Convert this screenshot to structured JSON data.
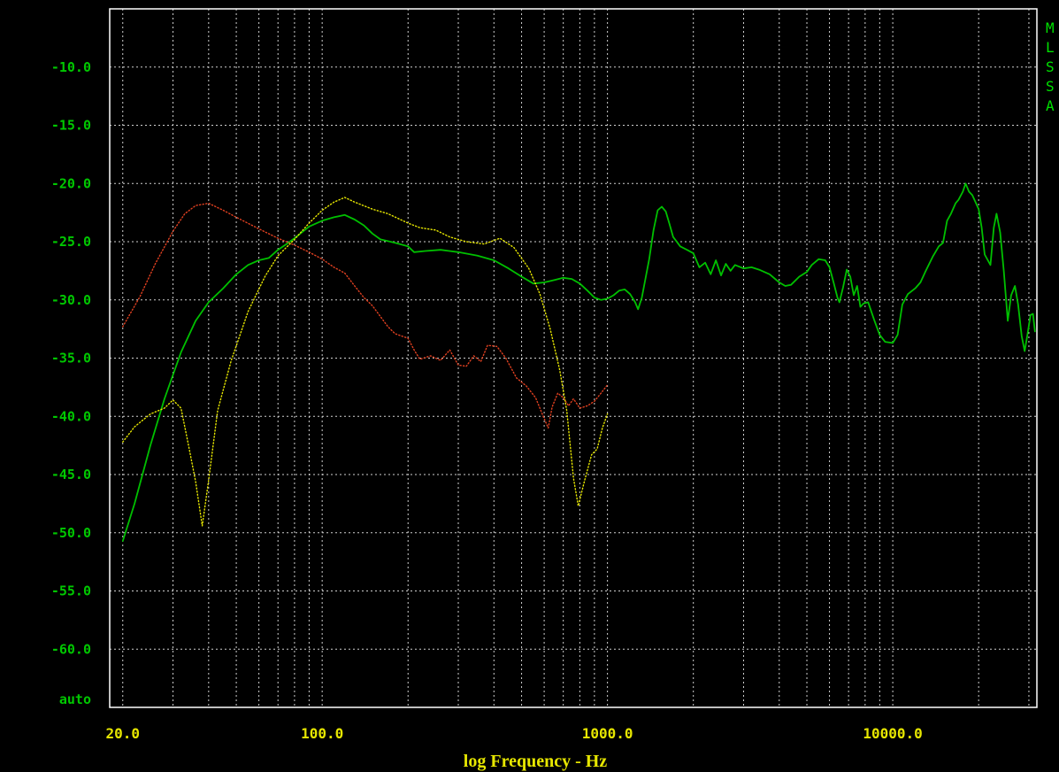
{
  "chart_data": {
    "type": "line",
    "xlabel": "log Frequency - Hz",
    "xscale": "log",
    "xlim": [
      18,
      32000
    ],
    "ylim": [
      -65.0,
      -5.0
    ],
    "auto_label": "auto",
    "grid": true,
    "x_tick_labels": [
      "20.0",
      "100.0",
      "1000.0",
      "10000.0"
    ],
    "y_ticks": [
      {
        "value": -10,
        "label": "-10.0"
      },
      {
        "value": -15,
        "label": "-15.0"
      },
      {
        "value": -20,
        "label": "-20.0"
      },
      {
        "value": -25,
        "label": "-25.0"
      },
      {
        "value": -30,
        "label": "-30.0"
      },
      {
        "value": -35,
        "label": "-35.0"
      },
      {
        "value": -40,
        "label": "-40.0"
      },
      {
        "value": -45,
        "label": "-45.0"
      },
      {
        "value": -50,
        "label": "-50.0"
      },
      {
        "value": -55,
        "label": "-55.0"
      },
      {
        "value": -60,
        "label": "-60.0"
      }
    ],
    "side_letters": [
      "M",
      "L",
      "S",
      "S",
      "A"
    ],
    "colors": {
      "axis_labels": "#00c800",
      "x_labels": "#e6e600",
      "grid": "#d0d0d0",
      "frame": "#ffffff",
      "background": "#000000"
    },
    "series": [
      {
        "color": "#00c000",
        "style": "solid",
        "points": [
          [
            20,
            -50.7
          ],
          [
            22,
            -47.5
          ],
          [
            25,
            -42.5
          ],
          [
            28,
            -38.5
          ],
          [
            32,
            -34.5
          ],
          [
            36,
            -31.8
          ],
          [
            40,
            -30.2
          ],
          [
            45,
            -29.0
          ],
          [
            50,
            -27.8
          ],
          [
            55,
            -27.0
          ],
          [
            60,
            -26.6
          ],
          [
            65,
            -26.4
          ],
          [
            70,
            -25.7
          ],
          [
            75,
            -25.2
          ],
          [
            80,
            -24.7
          ],
          [
            90,
            -23.7
          ],
          [
            100,
            -23.2
          ],
          [
            110,
            -22.9
          ],
          [
            120,
            -22.7
          ],
          [
            130,
            -23.1
          ],
          [
            140,
            -23.6
          ],
          [
            150,
            -24.3
          ],
          [
            160,
            -24.8
          ],
          [
            180,
            -25.1
          ],
          [
            200,
            -25.4
          ],
          [
            210,
            -25.9
          ],
          [
            230,
            -25.8
          ],
          [
            260,
            -25.7
          ],
          [
            300,
            -25.9
          ],
          [
            350,
            -26.2
          ],
          [
            400,
            -26.6
          ],
          [
            450,
            -27.3
          ],
          [
            500,
            -28.0
          ],
          [
            550,
            -28.6
          ],
          [
            600,
            -28.5
          ],
          [
            650,
            -28.3
          ],
          [
            700,
            -28.1
          ],
          [
            750,
            -28.2
          ],
          [
            800,
            -28.6
          ],
          [
            850,
            -29.2
          ],
          [
            900,
            -29.8
          ],
          [
            950,
            -30.0
          ],
          [
            1000,
            -29.9
          ],
          [
            1050,
            -29.6
          ],
          [
            1100,
            -29.2
          ],
          [
            1150,
            -29.1
          ],
          [
            1200,
            -29.5
          ],
          [
            1250,
            -30.2
          ],
          [
            1280,
            -30.8
          ],
          [
            1320,
            -29.8
          ],
          [
            1400,
            -26.5
          ],
          [
            1450,
            -24.0
          ],
          [
            1500,
            -22.3
          ],
          [
            1550,
            -22.0
          ],
          [
            1600,
            -22.4
          ],
          [
            1650,
            -23.5
          ],
          [
            1700,
            -24.6
          ],
          [
            1800,
            -25.4
          ],
          [
            1900,
            -25.7
          ],
          [
            2000,
            -26.0
          ],
          [
            2100,
            -27.2
          ],
          [
            2200,
            -26.8
          ],
          [
            2300,
            -27.8
          ],
          [
            2400,
            -26.6
          ],
          [
            2500,
            -27.9
          ],
          [
            2600,
            -26.9
          ],
          [
            2700,
            -27.5
          ],
          [
            2800,
            -27.0
          ],
          [
            3000,
            -27.3
          ],
          [
            3200,
            -27.2
          ],
          [
            3400,
            -27.4
          ],
          [
            3700,
            -27.8
          ],
          [
            4000,
            -28.5
          ],
          [
            4200,
            -28.8
          ],
          [
            4400,
            -28.7
          ],
          [
            4700,
            -28.0
          ],
          [
            5000,
            -27.6
          ],
          [
            5200,
            -27.0
          ],
          [
            5500,
            -26.5
          ],
          [
            5800,
            -26.6
          ],
          [
            6000,
            -27.2
          ],
          [
            6200,
            -28.5
          ],
          [
            6400,
            -29.8
          ],
          [
            6500,
            -30.2
          ],
          [
            6700,
            -28.9
          ],
          [
            6900,
            -27.4
          ],
          [
            7100,
            -28.0
          ],
          [
            7300,
            -29.6
          ],
          [
            7500,
            -28.8
          ],
          [
            7700,
            -30.6
          ],
          [
            7900,
            -30.3
          ],
          [
            8200,
            -30.2
          ],
          [
            8600,
            -31.7
          ],
          [
            9000,
            -33.0
          ],
          [
            9400,
            -33.6
          ],
          [
            10000,
            -33.7
          ],
          [
            10400,
            -33.0
          ],
          [
            10800,
            -30.4
          ],
          [
            11300,
            -29.5
          ],
          [
            12000,
            -29.0
          ],
          [
            12500,
            -28.5
          ],
          [
            13000,
            -27.6
          ],
          [
            13800,
            -26.3
          ],
          [
            14500,
            -25.4
          ],
          [
            15000,
            -25.1
          ],
          [
            15500,
            -23.2
          ],
          [
            16000,
            -22.6
          ],
          [
            16600,
            -21.7
          ],
          [
            17000,
            -21.4
          ],
          [
            17600,
            -20.7
          ],
          [
            18000,
            -20.0
          ],
          [
            18500,
            -20.7
          ],
          [
            19000,
            -21.0
          ],
          [
            19500,
            -21.6
          ],
          [
            20000,
            -22.2
          ],
          [
            20500,
            -23.8
          ],
          [
            21000,
            -26.1
          ],
          [
            22000,
            -27.0
          ],
          [
            22600,
            -23.8
          ],
          [
            23100,
            -22.6
          ],
          [
            23800,
            -24.2
          ],
          [
            24500,
            -27.5
          ],
          [
            25300,
            -31.8
          ],
          [
            26000,
            -29.6
          ],
          [
            26800,
            -28.8
          ],
          [
            27500,
            -30.4
          ],
          [
            28300,
            -33.1
          ],
          [
            29000,
            -34.4
          ],
          [
            29600,
            -33.1
          ],
          [
            30400,
            -31.3
          ],
          [
            31000,
            -31.2
          ],
          [
            31500,
            -32.7
          ]
        ]
      },
      {
        "color": "#e04020",
        "style": "dotted",
        "points": [
          [
            20,
            -32.3
          ],
          [
            23,
            -29.7
          ],
          [
            26,
            -26.9
          ],
          [
            30,
            -24.1
          ],
          [
            33,
            -22.6
          ],
          [
            36,
            -21.9
          ],
          [
            40,
            -21.7
          ],
          [
            45,
            -22.3
          ],
          [
            50,
            -22.9
          ],
          [
            60,
            -23.9
          ],
          [
            70,
            -24.7
          ],
          [
            80,
            -25.3
          ],
          [
            90,
            -25.9
          ],
          [
            100,
            -26.5
          ],
          [
            110,
            -27.2
          ],
          [
            120,
            -27.7
          ],
          [
            130,
            -28.8
          ],
          [
            140,
            -29.8
          ],
          [
            150,
            -30.5
          ],
          [
            170,
            -32.3
          ],
          [
            180,
            -32.9
          ],
          [
            200,
            -33.3
          ],
          [
            210,
            -34.3
          ],
          [
            220,
            -35.1
          ],
          [
            240,
            -34.8
          ],
          [
            260,
            -35.2
          ],
          [
            280,
            -34.3
          ],
          [
            300,
            -35.6
          ],
          [
            320,
            -35.7
          ],
          [
            340,
            -34.8
          ],
          [
            360,
            -35.3
          ],
          [
            380,
            -33.9
          ],
          [
            410,
            -34.0
          ],
          [
            440,
            -35.0
          ],
          [
            480,
            -36.7
          ],
          [
            520,
            -37.4
          ],
          [
            560,
            -38.4
          ],
          [
            600,
            -40.2
          ],
          [
            620,
            -41.0
          ],
          [
            640,
            -39.2
          ],
          [
            670,
            -38.0
          ],
          [
            700,
            -38.4
          ],
          [
            730,
            -39.1
          ],
          [
            760,
            -38.5
          ],
          [
            800,
            -39.3
          ],
          [
            850,
            -39.1
          ],
          [
            900,
            -38.7
          ],
          [
            950,
            -38.0
          ],
          [
            1000,
            -37.3
          ]
        ]
      },
      {
        "color": "#e6e600",
        "style": "dotted",
        "points": [
          [
            20,
            -42.2
          ],
          [
            22,
            -40.9
          ],
          [
            25,
            -39.8
          ],
          [
            28,
            -39.3
          ],
          [
            30,
            -38.6
          ],
          [
            32,
            -39.3
          ],
          [
            34,
            -42.5
          ],
          [
            36,
            -45.6
          ],
          [
            38,
            -49.4
          ],
          [
            40,
            -45.5
          ],
          [
            43,
            -39.5
          ],
          [
            48,
            -35.2
          ],
          [
            55,
            -31.0
          ],
          [
            63,
            -28.0
          ],
          [
            70,
            -26.2
          ],
          [
            80,
            -24.8
          ],
          [
            90,
            -23.4
          ],
          [
            100,
            -22.3
          ],
          [
            110,
            -21.6
          ],
          [
            120,
            -21.2
          ],
          [
            130,
            -21.6
          ],
          [
            150,
            -22.2
          ],
          [
            170,
            -22.6
          ],
          [
            200,
            -23.4
          ],
          [
            220,
            -23.8
          ],
          [
            250,
            -24.0
          ],
          [
            280,
            -24.6
          ],
          [
            320,
            -25.0
          ],
          [
            370,
            -25.2
          ],
          [
            420,
            -24.7
          ],
          [
            470,
            -25.5
          ],
          [
            530,
            -27.3
          ],
          [
            580,
            -29.5
          ],
          [
            630,
            -32.5
          ],
          [
            680,
            -36.0
          ],
          [
            720,
            -39.5
          ],
          [
            760,
            -45.3
          ],
          [
            790,
            -47.7
          ],
          [
            830,
            -45.6
          ],
          [
            880,
            -43.3
          ],
          [
            920,
            -42.8
          ],
          [
            960,
            -41.0
          ],
          [
            1000,
            -39.8
          ]
        ]
      }
    ]
  }
}
